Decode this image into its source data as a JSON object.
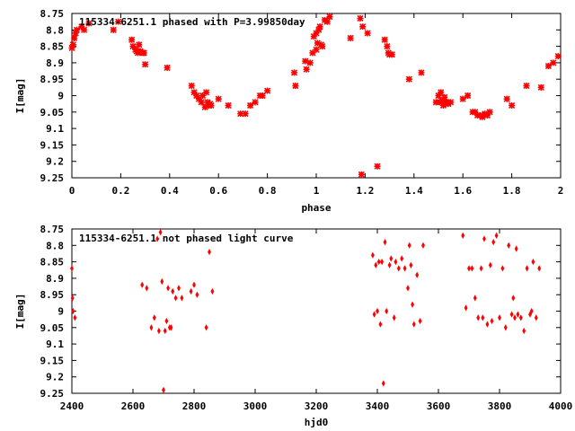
{
  "chart_data": [
    {
      "type": "scatter",
      "title": "115334-6251.1 phased with P=3.99850day",
      "xlabel": "phase",
      "ylabel": "I[mag]",
      "xlim": [
        0,
        2
      ],
      "ylim": [
        9.25,
        8.75
      ],
      "y_inverted": true,
      "x_ticks": [
        "0",
        "0.2",
        "0.4",
        "0.6",
        "0.8",
        "1",
        "1.2",
        "1.4",
        "1.6",
        "1.8",
        "2"
      ],
      "y_ticks": [
        "8.75",
        "8.8",
        "8.85",
        "8.9",
        "8.95",
        "9",
        "9.05",
        "9.1",
        "9.15",
        "9.2",
        "9.25"
      ],
      "marker_color": "#ff0000",
      "marker": "cross",
      "legend": "none",
      "grid": false,
      "series": [
        {
          "x": [
            0.0,
            0.005,
            0.01,
            0.015,
            0.02,
            0.04,
            0.05,
            0.07,
            0.17,
            0.19,
            0.245,
            0.25,
            0.26,
            0.265,
            0.27,
            0.275,
            0.28,
            0.29,
            0.295,
            0.3,
            0.39,
            0.49,
            0.5,
            0.51,
            0.52,
            0.53,
            0.535,
            0.545,
            0.55,
            0.555,
            0.56,
            0.565,
            0.57,
            0.6,
            0.64,
            0.69,
            0.71,
            0.73,
            0.75,
            0.77,
            0.78,
            0.8,
            0.91,
            0.915,
            0.955,
            0.96,
            0.975,
            0.985,
            0.99,
            1.0,
            1.0,
            1.005,
            1.01,
            1.015,
            1.02,
            1.025,
            1.035,
            1.045,
            1.055,
            1.14,
            1.18,
            1.185,
            1.19,
            1.21,
            1.25,
            1.28,
            1.29,
            1.295,
            1.3,
            1.31,
            1.38,
            1.43,
            1.49,
            1.5,
            1.505,
            1.51,
            1.515,
            1.52,
            1.525,
            1.53,
            1.535,
            1.54,
            1.55,
            1.6,
            1.62,
            1.64,
            1.65,
            1.66,
            1.67,
            1.68,
            1.69,
            1.7,
            1.71,
            1.78,
            1.8,
            1.86,
            1.92,
            1.95,
            1.97,
            1.99
          ],
          "y": [
            8.855,
            8.845,
            8.825,
            8.81,
            8.8,
            8.79,
            8.8,
            8.78,
            8.8,
            8.775,
            8.83,
            8.85,
            8.86,
            8.865,
            8.87,
            8.845,
            8.865,
            8.87,
            8.87,
            8.905,
            8.915,
            8.97,
            8.99,
            9.0,
            9.01,
            9.02,
            9.0,
            9.035,
            8.99,
            9.02,
            9.03,
            9.025,
            9.03,
            9.01,
            9.03,
            9.055,
            9.055,
            9.03,
            9.02,
            9.0,
            9.0,
            8.985,
            8.93,
            8.97,
            8.895,
            8.92,
            8.9,
            8.87,
            8.82,
            8.81,
            8.86,
            8.84,
            8.8,
            8.79,
            8.845,
            8.85,
            8.77,
            8.775,
            8.76,
            8.825,
            8.765,
            9.24,
            8.79,
            8.81,
            9.215,
            8.83,
            8.85,
            8.87,
            8.875,
            8.875,
            8.95,
            8.93,
            9.02,
            9.0,
            9.02,
            8.99,
            9.015,
            9.03,
            9.005,
            9.02,
            9.02,
            9.025,
            9.02,
            9.01,
            9.0,
            9.05,
            9.05,
            9.06,
            9.06,
            9.065,
            9.055,
            9.06,
            9.05,
            9.01,
            9.03,
            8.97,
            8.975,
            8.91,
            8.9,
            8.88
          ]
        }
      ]
    },
    {
      "type": "scatter",
      "title": "115334-6251.1 not phased light curve",
      "xlabel": "hjd0",
      "ylabel": "I[mag]",
      "xlim": [
        2400,
        4000
      ],
      "ylim": [
        9.25,
        8.75
      ],
      "y_inverted": true,
      "x_ticks": [
        "2400",
        "2600",
        "2800",
        "3000",
        "3200",
        "3400",
        "3600",
        "3800",
        "4000"
      ],
      "y_ticks": [
        "8.75",
        "8.8",
        "8.85",
        "8.9",
        "8.95",
        "9",
        "9.05",
        "9.1",
        "9.15",
        "9.2",
        "9.25"
      ],
      "marker_color": "#ff0000",
      "marker": "diamond",
      "legend": "none",
      "grid": false,
      "series": [
        {
          "x": [
            2400,
            2402,
            2404,
            2410,
            2630,
            2645,
            2660,
            2670,
            2680,
            2685,
            2690,
            2695,
            2700,
            2705,
            2710,
            2715,
            2720,
            2725,
            2730,
            2740,
            2750,
            2760,
            2790,
            2800,
            2810,
            2840,
            2850,
            2860,
            3385,
            3390,
            3395,
            3400,
            3405,
            3410,
            3415,
            3420,
            3425,
            3430,
            3440,
            3445,
            3455,
            3460,
            3470,
            3480,
            3490,
            3500,
            3505,
            3510,
            3515,
            3520,
            3530,
            3540,
            3550,
            3680,
            3690,
            3700,
            3710,
            3720,
            3730,
            3740,
            3745,
            3750,
            3760,
            3770,
            3775,
            3780,
            3790,
            3800,
            3810,
            3820,
            3830,
            3840,
            3845,
            3850,
            3855,
            3860,
            3870,
            3880,
            3890,
            3900,
            3905,
            3910,
            3920,
            3930
          ],
          "y": [
            8.87,
            8.96,
            9.0,
            9.02,
            8.92,
            8.93,
            9.05,
            9.02,
            8.78,
            9.06,
            8.76,
            8.91,
            9.24,
            9.06,
            9.03,
            8.93,
            9.05,
            9.05,
            8.94,
            8.96,
            8.93,
            8.96,
            8.94,
            8.92,
            8.95,
            9.05,
            8.82,
            8.94,
            8.83,
            9.01,
            8.86,
            9.0,
            8.85,
            9.04,
            8.85,
            9.22,
            8.79,
            9.0,
            8.86,
            8.84,
            9.02,
            8.85,
            8.87,
            8.84,
            8.87,
            8.93,
            8.8,
            8.86,
            8.98,
            9.04,
            8.89,
            9.03,
            8.8,
            8.77,
            8.99,
            8.87,
            8.87,
            8.96,
            9.02,
            8.87,
            9.02,
            8.78,
            9.04,
            8.86,
            9.03,
            8.79,
            8.77,
            9.02,
            8.87,
            9.05,
            8.8,
            9.01,
            8.96,
            9.02,
            8.81,
            9.01,
            9.02,
            9.06,
            8.87,
            9.01,
            9.0,
            8.85,
            9.02,
            8.87
          ]
        }
      ]
    }
  ]
}
